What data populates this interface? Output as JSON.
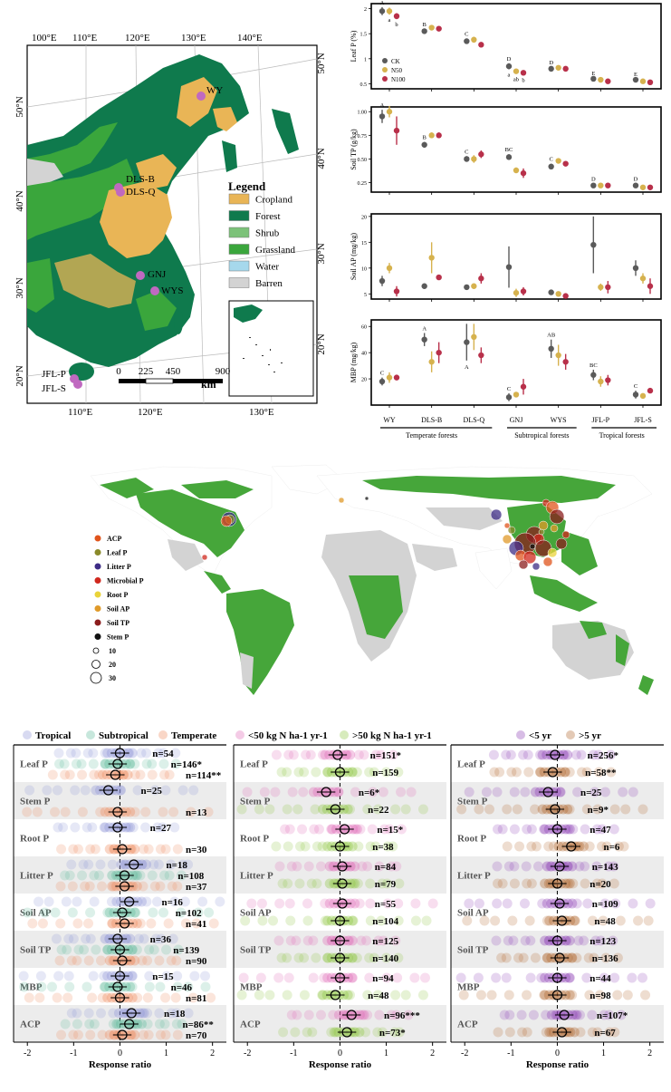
{
  "colors": {
    "cropland": "#e9b556",
    "forest": "#0f7a4d",
    "shrub": "#7cc279",
    "grassland": "#3aa63c",
    "water": "#a6d8ec",
    "barren": "#d3d3d3",
    "site": "#c069c0",
    "ck": "#5a5a5a",
    "n50": "#d6b24e",
    "n100": "#b8304a",
    "tropical": "#8f95d6",
    "subtropical": "#5fb99a",
    "temperate": "#ef8a5c",
    "low_n": "#e06bb7",
    "high_n": "#8cc63f",
    "short_yr": "#8b3fb5",
    "long_yr": "#b0642a",
    "row_shade": "#ececec"
  },
  "map": {
    "lon_labels": [
      "100°E",
      "110°E",
      "120°E",
      "130°E",
      "140°E"
    ],
    "bottom_lon_labels": [
      "110°E",
      "120°E",
      "130°E"
    ],
    "lat_labels_left": [
      "50°N",
      "40°N",
      "30°N",
      "20°N"
    ],
    "lat_labels_right": [
      "50°N",
      "40°N",
      "30°N",
      "20°N"
    ],
    "legend_title": "Legend",
    "legend_items": [
      {
        "label": "Cropland",
        "color": "#e9b556"
      },
      {
        "label": "Forest",
        "color": "#0f7a4d"
      },
      {
        "label": "Shrub",
        "color": "#7cc279"
      },
      {
        "label": "Grassland",
        "color": "#3aa63c"
      },
      {
        "label": "Water",
        "color": "#a6d8ec"
      },
      {
        "label": "Barren",
        "color": "#d3d3d3"
      }
    ],
    "sites": [
      "WY",
      "DLS-B",
      "DLS-Q",
      "GNJ",
      "WYS",
      "JFL-P",
      "JFL-S"
    ],
    "scale_labels": [
      "0",
      "225",
      "450",
      "900"
    ],
    "scale_unit": "km"
  },
  "chart_data": [
    {
      "type": "scatter",
      "ylabel": "Leaf P (%)",
      "categories": [
        "WY",
        "DLS-B",
        "DLS-Q",
        "GNJ",
        "WYS",
        "JFL-P",
        "JFL-S"
      ],
      "yticks": [
        "0.5",
        "1",
        "1.5",
        "2"
      ],
      "ylim": [
        0.4,
        2.1
      ],
      "legend": [
        "CK",
        "N50",
        "N100"
      ],
      "letters": [
        [
          "A",
          "a",
          "b"
        ],
        [
          "B",
          "",
          ""
        ],
        [
          "C",
          "",
          ""
        ],
        [
          "D",
          "a",
          "ab",
          "b"
        ],
        [
          "D",
          "",
          ""
        ],
        [
          "E",
          "",
          ""
        ],
        [
          "E",
          "",
          ""
        ]
      ],
      "series": [
        {
          "name": "CK",
          "values": [
            1.95,
            1.55,
            1.35,
            0.85,
            0.8,
            0.6,
            0.58
          ],
          "err": [
            0.08,
            0.04,
            0.05,
            0.06,
            0.03,
            0.02,
            0.02
          ]
        },
        {
          "name": "N50",
          "values": [
            1.95,
            1.62,
            1.38,
            0.75,
            0.82,
            0.58,
            0.55
          ],
          "err": [
            0.07,
            0.05,
            0.06,
            0.05,
            0.03,
            0.02,
            0.02
          ]
        },
        {
          "name": "N100",
          "values": [
            1.85,
            1.6,
            1.28,
            0.72,
            0.8,
            0.55,
            0.53
          ],
          "err": [
            0.06,
            0.04,
            0.05,
            0.04,
            0.03,
            0.02,
            0.02
          ]
        }
      ]
    },
    {
      "type": "scatter",
      "ylabel": "Soil TP (g/kg)",
      "categories": [
        "WY",
        "DLS-B",
        "DLS-Q",
        "GNJ",
        "WYS",
        "JFL-P",
        "JFL-S"
      ],
      "yticks": [
        "0.25",
        "0.50",
        "0.75",
        "1.00"
      ],
      "ylim": [
        0.15,
        1.05
      ],
      "letters": [
        [
          "A"
        ],
        [
          "B"
        ],
        [
          "C"
        ],
        [
          "BC"
        ],
        [
          "C"
        ],
        [
          "D"
        ],
        [
          "D"
        ]
      ],
      "series": [
        {
          "name": "CK",
          "values": [
            0.95,
            0.65,
            0.5,
            0.52,
            0.42,
            0.22,
            0.22
          ],
          "err": [
            0.07,
            0.03,
            0.03,
            0.03,
            0.03,
            0.02,
            0.02
          ]
        },
        {
          "name": "N50",
          "values": [
            1.0,
            0.75,
            0.5,
            0.38,
            0.48,
            0.22,
            0.2
          ],
          "err": [
            0.06,
            0.03,
            0.04,
            0.03,
            0.02,
            0.02,
            0.01
          ]
        },
        {
          "name": "N100",
          "values": [
            0.8,
            0.75,
            0.55,
            0.35,
            0.45,
            0.22,
            0.2
          ],
          "err": [
            0.15,
            0.03,
            0.04,
            0.05,
            0.02,
            0.02,
            0.01
          ]
        }
      ]
    },
    {
      "type": "scatter",
      "ylabel": "Soil AP (mg/kg)",
      "categories": [
        "WY",
        "DLS-B",
        "DLS-Q",
        "GNJ",
        "WYS",
        "JFL-P",
        "JFL-S"
      ],
      "yticks": [
        "5",
        "10",
        "15",
        "20"
      ],
      "ylim": [
        4,
        20.5
      ],
      "series": [
        {
          "name": "CK",
          "values": [
            7.5,
            6.5,
            6.3,
            10.2,
            5.3,
            14.5,
            10.0
          ],
          "err": [
            1.0,
            0.3,
            0.3,
            4.0,
            0.3,
            5.5,
            1.5
          ]
        },
        {
          "name": "N50",
          "values": [
            10.0,
            12.0,
            6.5,
            5.2,
            5.0,
            6.3,
            8.0
          ],
          "err": [
            1.0,
            3.0,
            0.5,
            0.8,
            0.3,
            0.7,
            1.0
          ]
        },
        {
          "name": "N100",
          "values": [
            5.5,
            8.2,
            8.0,
            5.5,
            4.6,
            6.3,
            6.5
          ],
          "err": [
            1.0,
            0.5,
            1.0,
            0.8,
            0.3,
            1.2,
            1.5
          ]
        }
      ]
    },
    {
      "type": "scatter",
      "ylabel": "MBP (mg/kg)",
      "categories": [
        "WY",
        "DLS-B",
        "DLS-Q",
        "GNJ",
        "WYS",
        "JFL-P",
        "JFL-S"
      ],
      "yticks": [
        "20",
        "40",
        "60"
      ],
      "ylim": [
        0,
        65
      ],
      "letters": [
        [
          "C"
        ],
        [
          "A"
        ],
        [
          "A"
        ],
        [
          "C"
        ],
        [
          "AB"
        ],
        [
          "BC"
        ],
        [
          "C"
        ]
      ],
      "series": [
        {
          "name": "CK",
          "values": [
            18,
            50,
            48,
            6,
            43,
            23,
            8
          ],
          "err": [
            3,
            5,
            14,
            3,
            7,
            4,
            3
          ]
        },
        {
          "name": "N50",
          "values": [
            21,
            33,
            52,
            8,
            38,
            18,
            7
          ],
          "err": [
            4,
            8,
            10,
            2,
            8,
            4,
            2
          ]
        },
        {
          "name": "N100",
          "values": [
            21,
            40,
            38,
            14,
            33,
            19,
            11
          ],
          "err": [
            2,
            8,
            6,
            6,
            6,
            4,
            2
          ]
        }
      ]
    },
    {
      "type": "scatter",
      "xlabel": "Response ratio",
      "xticks": [
        "-2",
        "-1",
        "0",
        "1",
        "2"
      ],
      "xlim": [
        -2.2,
        2.3
      ],
      "legend": [
        "Tropical",
        "Subtropical",
        "Temperate"
      ],
      "rows": [
        "Leaf P",
        "Stem P",
        "Root P",
        "Litter P",
        "Soil AP",
        "Soil TP",
        "MBP",
        "ACP"
      ],
      "series": [
        {
          "name": "Tropical",
          "labels": [
            "n=54",
            "n=25",
            "n=27",
            "n=18",
            "n=16",
            "n=36",
            "n=15",
            "n=18"
          ],
          "values": [
            0.0,
            -0.25,
            -0.05,
            0.3,
            0.2,
            -0.05,
            0.0,
            0.25
          ]
        },
        {
          "name": "Subtropical",
          "labels": [
            "n=146*",
            "",
            "",
            "n=108",
            "n=102",
            "n=139",
            "n=46",
            "n=86**"
          ],
          "values": [
            -0.05,
            null,
            null,
            0.1,
            0.05,
            0.0,
            -0.05,
            0.2
          ]
        },
        {
          "name": "Temperate",
          "labels": [
            "n=114**",
            "n=13",
            "n=30",
            "n=37",
            "n=41",
            "n=90",
            "n=81",
            "n=70"
          ],
          "values": [
            -0.1,
            -0.05,
            0.05,
            0.1,
            0.1,
            0.05,
            0.0,
            0.05
          ]
        }
      ]
    },
    {
      "type": "scatter",
      "xlabel": "Response ratio",
      "xticks": [
        "-2",
        "-1",
        "0",
        "1",
        "2"
      ],
      "xlim": [
        -2.2,
        2.3
      ],
      "legend": [
        "<50 kg N ha-1 yr-1",
        ">50 kg N ha-1 yr-1"
      ],
      "rows": [
        "Leaf P",
        "Stem P",
        "Root P",
        "Litter P",
        "Soil AP",
        "Soil TP",
        "MBP",
        "ACP"
      ],
      "series": [
        {
          "name": "<50 kg N ha-1 yr-1",
          "labels": [
            "n=151*",
            "n=6*",
            "n=15*",
            "n=84",
            "n=55",
            "n=125",
            "n=94",
            "n=96***"
          ],
          "values": [
            -0.05,
            -0.3,
            0.1,
            0.05,
            0.05,
            0.0,
            0.0,
            0.25
          ]
        },
        {
          "name": ">50 kg N ha-1 yr-1",
          "labels": [
            "n=159",
            "n=22",
            "n=38",
            "n=79",
            "n=104",
            "n=140",
            "n=48",
            "n=73*"
          ],
          "values": [
            0.0,
            -0.1,
            0.0,
            0.05,
            0.0,
            0.0,
            -0.1,
            0.15
          ]
        }
      ]
    },
    {
      "type": "scatter",
      "xlabel": "Response ratio",
      "xticks": [
        "-2",
        "-1",
        "0",
        "1",
        "2"
      ],
      "xlim": [
        -2.2,
        2.3
      ],
      "legend": [
        "<5 yr",
        ">5 yr"
      ],
      "rows": [
        "Leaf P",
        "Stem P",
        "Root P",
        "Litter P",
        "Soil AP",
        "Soil TP",
        "MBP",
        "ACP"
      ],
      "series": [
        {
          "name": "<5 yr",
          "labels": [
            "n=256*",
            "n=25",
            "n=47",
            "n=143",
            "n=109",
            "n=123",
            "n=44",
            "n=107*"
          ],
          "values": [
            -0.05,
            -0.2,
            0.0,
            0.05,
            0.05,
            0.0,
            0.0,
            0.15
          ]
        },
        {
          "name": ">5 yr",
          "labels": [
            "n=58**",
            "n=9*",
            "n=6",
            "n=20",
            "n=48",
            "n=136",
            "n=98",
            "n=67"
          ],
          "values": [
            -0.1,
            -0.05,
            0.3,
            0.0,
            0.1,
            0.05,
            0.0,
            0.1
          ]
        }
      ]
    }
  ],
  "bottom_labels": {
    "sites": [
      "WY",
      "DLS-B",
      "DLS-Q",
      "GNJ",
      "WYS",
      "JFL-P",
      "JFL-S"
    ],
    "groups": [
      "Temperate forests",
      "Subtropical forests",
      "Tropical forests"
    ]
  },
  "world_map": {
    "legend_items": [
      {
        "label": "ACP",
        "color": "#e0541c"
      },
      {
        "label": "Leaf P",
        "color": "#8a8a2a"
      },
      {
        "label": "Litter P",
        "color": "#3d2c86"
      },
      {
        "label": "Microbial P",
        "color": "#d0281e"
      },
      {
        "label": "Root P",
        "color": "#e9d33a"
      },
      {
        "label": "Soil AP",
        "color": "#e09a2a"
      },
      {
        "label": "Soil TP",
        "color": "#8b1d1d"
      },
      {
        "label": "Stem P",
        "color": "#111111"
      }
    ],
    "size_legend": [
      "10",
      "20",
      "30"
    ]
  }
}
